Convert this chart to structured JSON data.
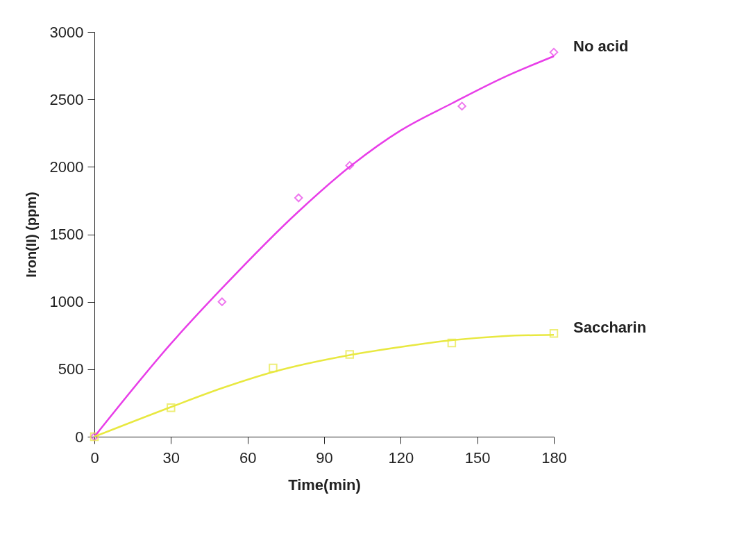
{
  "chart_data": {
    "type": "scatter",
    "xlabel": "Time(min)",
    "ylabel": "Iron(II) (ppm)",
    "xlim": [
      0,
      180
    ],
    "xticks": [
      0,
      30,
      60,
      90,
      120,
      150,
      180
    ],
    "ylim": [
      0,
      3000
    ],
    "yticks": [
      0,
      500,
      1000,
      1500,
      2000,
      2500,
      3000
    ],
    "grid": false,
    "series": [
      {
        "name": "No acid",
        "marker": "diamond",
        "color": "#e83ee8",
        "x": [
          0,
          50,
          80,
          100,
          144,
          180
        ],
        "values": [
          0,
          1000,
          1770,
          2010,
          2450,
          2850
        ]
      },
      {
        "name": "Saccharin",
        "marker": "square",
        "color": "#e8e840",
        "x": [
          0,
          30,
          70,
          100,
          140,
          180
        ],
        "values": [
          0,
          215,
          510,
          610,
          695,
          765
        ]
      },
      {
        "type": "line",
        "color": "#e83ee8",
        "marker": "none",
        "x": [
          0,
          30,
          50,
          80,
          100,
          120,
          140,
          160,
          180
        ],
        "values": [
          0,
          690,
          1100,
          1670,
          2000,
          2270,
          2470,
          2660,
          2820
        ]
      },
      {
        "type": "line",
        "color": "#e8e840",
        "marker": "none",
        "x": [
          0,
          30,
          50,
          70,
          100,
          120,
          140,
          160,
          180
        ],
        "values": [
          0,
          220,
          360,
          480,
          605,
          665,
          715,
          745,
          755
        ]
      }
    ]
  }
}
